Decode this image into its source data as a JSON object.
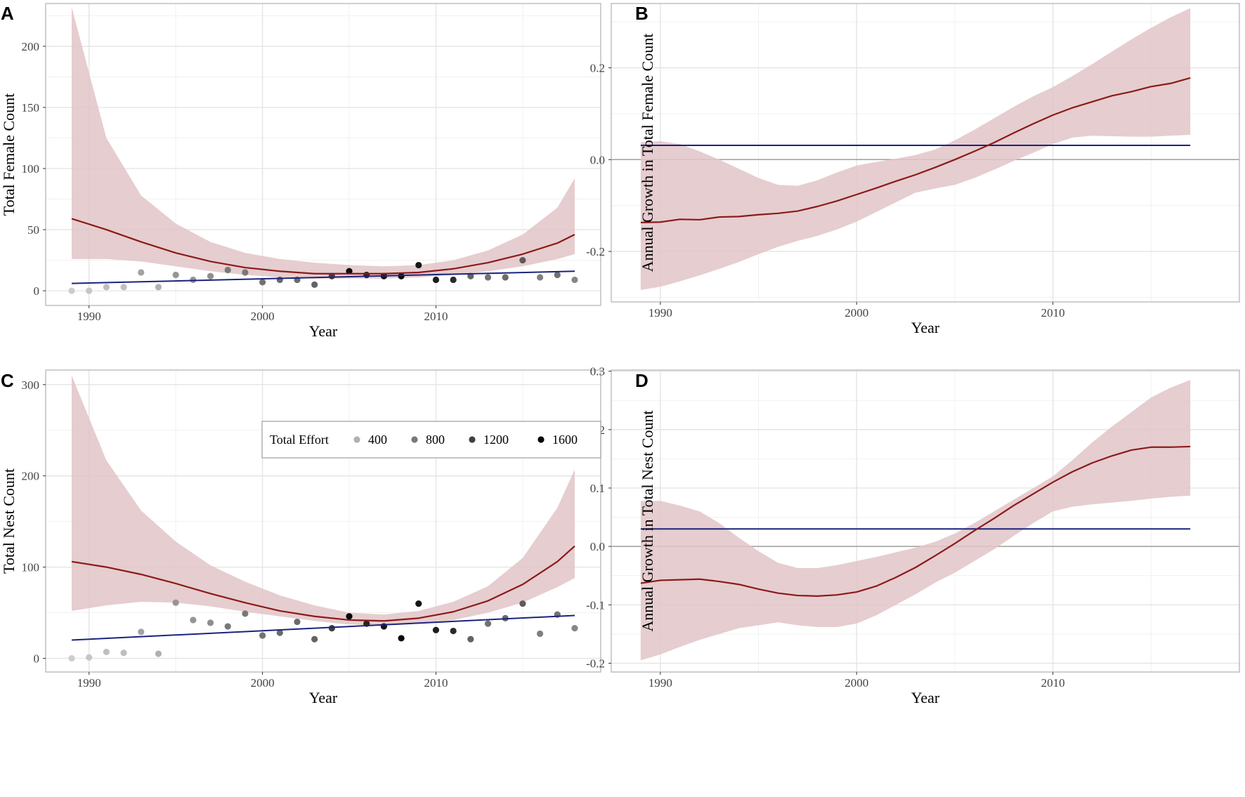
{
  "colors": {
    "ribbon": "#e2c4c7",
    "fit_line": "#8b1a1a",
    "trend_line": "#1a237e",
    "zero_line": "#9e9e9e",
    "grid_major": "#e3e3e3",
    "grid_minor": "#f1f1f1",
    "border": "#b5b5b5"
  },
  "legend": {
    "title": "Total Effort",
    "items": [
      {
        "label": "400",
        "value": 400
      },
      {
        "label": "800",
        "value": 800
      },
      {
        "label": "1200",
        "value": 1200
      },
      {
        "label": "1600",
        "value": 1600
      }
    ]
  },
  "chart_data": [
    {
      "id": "A",
      "letter": "A",
      "type": "scatter",
      "xlabel": "Year",
      "ylabel": "Total Female Count",
      "xlim": [
        1987.5,
        2019.5
      ],
      "ylim": [
        -12,
        235
      ],
      "xticks": [
        1990,
        2000,
        2010
      ],
      "xtick_labels": [
        "1990",
        "2000",
        "2010"
      ],
      "yticks": [
        0,
        50,
        100,
        150,
        200
      ],
      "ytick_labels": [
        "0",
        "50",
        "100",
        "150",
        "200"
      ],
      "zero_line": false,
      "points": [
        {
          "x": 1989,
          "y": 0,
          "effort": 200
        },
        {
          "x": 1990,
          "y": 0,
          "effort": 250
        },
        {
          "x": 1991,
          "y": 3,
          "effort": 300
        },
        {
          "x": 1992,
          "y": 3,
          "effort": 300
        },
        {
          "x": 1993,
          "y": 15,
          "effort": 500
        },
        {
          "x": 1994,
          "y": 3,
          "effort": 400
        },
        {
          "x": 1995,
          "y": 13,
          "effort": 600
        },
        {
          "x": 1996,
          "y": 9,
          "effort": 600
        },
        {
          "x": 1997,
          "y": 12,
          "effort": 650
        },
        {
          "x": 1998,
          "y": 17,
          "effort": 800
        },
        {
          "x": 1999,
          "y": 15,
          "effort": 800
        },
        {
          "x": 2000,
          "y": 7,
          "effort": 850
        },
        {
          "x": 2001,
          "y": 9,
          "effort": 900
        },
        {
          "x": 2002,
          "y": 9,
          "effort": 900
        },
        {
          "x": 2003,
          "y": 5,
          "effort": 950
        },
        {
          "x": 2004,
          "y": 12,
          "effort": 1200
        },
        {
          "x": 2005,
          "y": 16,
          "effort": 1600
        },
        {
          "x": 2006,
          "y": 13,
          "effort": 1400
        },
        {
          "x": 2007,
          "y": 12,
          "effort": 1500
        },
        {
          "x": 2008,
          "y": 12,
          "effort": 1600
        },
        {
          "x": 2009,
          "y": 21,
          "effort": 1500
        },
        {
          "x": 2010,
          "y": 9,
          "effort": 1450
        },
        {
          "x": 2011,
          "y": 9,
          "effort": 1350
        },
        {
          "x": 2012,
          "y": 12,
          "effort": 950
        },
        {
          "x": 2013,
          "y": 11,
          "effort": 850
        },
        {
          "x": 2014,
          "y": 11,
          "effort": 900
        },
        {
          "x": 2015,
          "y": 25,
          "effort": 1000
        },
        {
          "x": 2016,
          "y": 11,
          "effort": 750
        },
        {
          "x": 2017,
          "y": 13,
          "effort": 850
        },
        {
          "x": 2018,
          "y": 9,
          "effort": 700
        }
      ],
      "fit": {
        "x": [
          1989,
          1991,
          1993,
          1995,
          1997,
          1999,
          2001,
          2003,
          2005,
          2007,
          2009,
          2011,
          2013,
          2015,
          2017,
          2018
        ],
        "y": [
          59,
          50,
          40,
          31,
          24,
          19,
          16,
          14,
          14,
          14,
          15,
          18,
          23,
          30,
          39,
          46
        ],
        "lower": [
          26,
          26,
          24,
          20,
          16,
          13,
          11,
          10,
          10,
          10,
          11,
          13,
          16,
          20,
          26,
          30
        ],
        "upper": [
          232,
          125,
          78,
          55,
          40,
          31,
          26,
          23,
          21,
          20,
          21,
          25,
          33,
          46,
          68,
          92
        ]
      },
      "trend": {
        "x": [
          1989,
          2018
        ],
        "y": [
          6,
          16
        ]
      }
    },
    {
      "id": "B",
      "letter": "B",
      "type": "line",
      "xlabel": "Year",
      "ylabel": "Annual Growth in Total Female Count",
      "xlim": [
        1987.5,
        2019.5
      ],
      "ylim": [
        -0.31,
        0.34
      ],
      "xticks": [
        1990,
        2000,
        2010
      ],
      "xtick_labels": [
        "1990",
        "2000",
        "2010"
      ],
      "yticks": [
        -0.2,
        0.0,
        0.2
      ],
      "ytick_labels": [
        "-0.2",
        "0.0",
        "0.2"
      ],
      "zero_line": true,
      "points": [],
      "fit": {
        "x": [
          1989,
          1990,
          1991,
          1992,
          1993,
          1994,
          1995,
          1996,
          1997,
          1998,
          1999,
          2000,
          2001,
          2002,
          2003,
          2004,
          2005,
          2006,
          2007,
          2008,
          2009,
          2010,
          2011,
          2012,
          2013,
          2014,
          2015,
          2016,
          2017
        ],
        "y": [
          -0.137,
          -0.136,
          -0.13,
          -0.131,
          -0.125,
          -0.124,
          -0.12,
          -0.117,
          -0.112,
          -0.102,
          -0.09,
          -0.076,
          -0.062,
          -0.047,
          -0.033,
          -0.017,
          0.0,
          0.018,
          0.037,
          0.058,
          0.078,
          0.097,
          0.113,
          0.126,
          0.139,
          0.148,
          0.159,
          0.166,
          0.178
        ],
        "lower": [
          -0.284,
          -0.277,
          -0.265,
          -0.252,
          -0.238,
          -0.223,
          -0.206,
          -0.19,
          -0.177,
          -0.166,
          -0.152,
          -0.135,
          -0.114,
          -0.093,
          -0.072,
          -0.063,
          -0.055,
          -0.04,
          -0.022,
          -0.003,
          0.015,
          0.034,
          0.048,
          0.052,
          0.051,
          0.05,
          0.05,
          0.052,
          0.054
        ],
        "upper": [
          0.038,
          0.04,
          0.034,
          0.018,
          0.0,
          -0.02,
          -0.04,
          -0.055,
          -0.057,
          -0.045,
          -0.028,
          -0.013,
          -0.005,
          0.002,
          0.01,
          0.022,
          0.042,
          0.065,
          0.09,
          0.115,
          0.138,
          0.158,
          0.182,
          0.208,
          0.235,
          0.262,
          0.287,
          0.31,
          0.33
        ]
      },
      "trend": {
        "x": [
          1989,
          2017
        ],
        "y": [
          0.031,
          0.031
        ]
      }
    },
    {
      "id": "C",
      "letter": "C",
      "type": "scatter",
      "xlabel": "Year",
      "ylabel": "Total Nest Count",
      "xlim": [
        1987.5,
        2019.5
      ],
      "ylim": [
        -15,
        316
      ],
      "xticks": [
        1990,
        2000,
        2010
      ],
      "xtick_labels": [
        "1990",
        "2000",
        "2010"
      ],
      "yticks": [
        0,
        100,
        200,
        300
      ],
      "ytick_labels": [
        "0",
        "100",
        "200",
        "300"
      ],
      "zero_line": false,
      "points": [
        {
          "x": 1989,
          "y": 0,
          "effort": 200
        },
        {
          "x": 1990,
          "y": 1,
          "effort": 250
        },
        {
          "x": 1991,
          "y": 7,
          "effort": 300
        },
        {
          "x": 1992,
          "y": 6,
          "effort": 300
        },
        {
          "x": 1993,
          "y": 29,
          "effort": 500
        },
        {
          "x": 1994,
          "y": 5,
          "effort": 400
        },
        {
          "x": 1995,
          "y": 61,
          "effort": 600
        },
        {
          "x": 1996,
          "y": 42,
          "effort": 600
        },
        {
          "x": 1997,
          "y": 39,
          "effort": 650
        },
        {
          "x": 1998,
          "y": 35,
          "effort": 800
        },
        {
          "x": 1999,
          "y": 49,
          "effort": 800
        },
        {
          "x": 2000,
          "y": 25,
          "effort": 850
        },
        {
          "x": 2001,
          "y": 28,
          "effort": 900
        },
        {
          "x": 2002,
          "y": 40,
          "effort": 900
        },
        {
          "x": 2003,
          "y": 21,
          "effort": 950
        },
        {
          "x": 2004,
          "y": 33,
          "effort": 1200
        },
        {
          "x": 2005,
          "y": 46,
          "effort": 1600
        },
        {
          "x": 2006,
          "y": 38,
          "effort": 1400
        },
        {
          "x": 2007,
          "y": 35,
          "effort": 1500
        },
        {
          "x": 2008,
          "y": 22,
          "effort": 1600
        },
        {
          "x": 2009,
          "y": 60,
          "effort": 1500
        },
        {
          "x": 2010,
          "y": 31,
          "effort": 1450
        },
        {
          "x": 2011,
          "y": 30,
          "effort": 1350
        },
        {
          "x": 2012,
          "y": 21,
          "effort": 950
        },
        {
          "x": 2013,
          "y": 38,
          "effort": 850
        },
        {
          "x": 2014,
          "y": 44,
          "effort": 900
        },
        {
          "x": 2015,
          "y": 60,
          "effort": 1000
        },
        {
          "x": 2016,
          "y": 27,
          "effort": 750
        },
        {
          "x": 2017,
          "y": 48,
          "effort": 850
        },
        {
          "x": 2018,
          "y": 33,
          "effort": 700
        }
      ],
      "fit": {
        "x": [
          1989,
          1991,
          1993,
          1995,
          1997,
          1999,
          2001,
          2003,
          2005,
          2007,
          2009,
          2011,
          2013,
          2015,
          2017,
          2018
        ],
        "y": [
          106,
          100,
          92,
          82,
          71,
          61,
          52,
          46,
          42,
          41,
          44,
          51,
          63,
          81,
          106,
          123
        ],
        "lower": [
          52,
          58,
          62,
          61,
          57,
          51,
          46,
          41,
          37,
          36,
          38,
          42,
          50,
          61,
          78,
          88
        ],
        "upper": [
          310,
          217,
          162,
          128,
          102,
          84,
          69,
          58,
          50,
          48,
          52,
          62,
          79,
          110,
          165,
          207
        ]
      },
      "trend": {
        "x": [
          1989,
          2018
        ],
        "y": [
          20,
          47
        ]
      }
    },
    {
      "id": "D",
      "letter": "D",
      "type": "line",
      "xlabel": "Year",
      "ylabel": "Annual Growth in Total Nest Count",
      "xlim": [
        1987.5,
        2019.5
      ],
      "ylim": [
        -0.215,
        0.302
      ],
      "xticks": [
        1990,
        2000,
        2010
      ],
      "xtick_labels": [
        "1990",
        "2000",
        "2010"
      ],
      "yticks": [
        -0.2,
        -0.1,
        0.0,
        0.1,
        0.2,
        0.3
      ],
      "ytick_labels": [
        "-0.2",
        "-0.1",
        "0.0",
        "0.1",
        "0.2",
        "0.3"
      ],
      "zero_line": true,
      "points": [],
      "fit": {
        "x": [
          1989,
          1990,
          1991,
          1992,
          1993,
          1994,
          1995,
          1996,
          1997,
          1998,
          1999,
          2000,
          2001,
          2002,
          2003,
          2004,
          2005,
          2006,
          2007,
          2008,
          2009,
          2010,
          2011,
          2012,
          2013,
          2014,
          2015,
          2016,
          2017
        ],
        "y": [
          -0.063,
          -0.058,
          -0.057,
          -0.056,
          -0.06,
          -0.065,
          -0.073,
          -0.08,
          -0.084,
          -0.085,
          -0.083,
          -0.078,
          -0.068,
          -0.053,
          -0.036,
          -0.016,
          0.005,
          0.027,
          0.048,
          0.07,
          0.09,
          0.11,
          0.128,
          0.143,
          0.155,
          0.165,
          0.17,
          0.17,
          0.171
        ],
        "lower": [
          -0.195,
          -0.185,
          -0.172,
          -0.16,
          -0.15,
          -0.14,
          -0.135,
          -0.13,
          -0.135,
          -0.138,
          -0.138,
          -0.132,
          -0.118,
          -0.1,
          -0.082,
          -0.062,
          -0.045,
          -0.025,
          -0.005,
          0.018,
          0.04,
          0.06,
          0.068,
          0.072,
          0.075,
          0.078,
          0.082,
          0.085,
          0.087
        ],
        "upper": [
          0.078,
          0.078,
          0.07,
          0.06,
          0.04,
          0.015,
          -0.008,
          -0.028,
          -0.037,
          -0.037,
          -0.032,
          -0.025,
          -0.018,
          -0.01,
          -0.002,
          0.008,
          0.022,
          0.04,
          0.06,
          0.08,
          0.1,
          0.12,
          0.148,
          0.178,
          0.205,
          0.23,
          0.255,
          0.272,
          0.285
        ]
      },
      "trend": {
        "x": [
          1989,
          2017
        ],
        "y": [
          0.03,
          0.03
        ]
      }
    }
  ]
}
